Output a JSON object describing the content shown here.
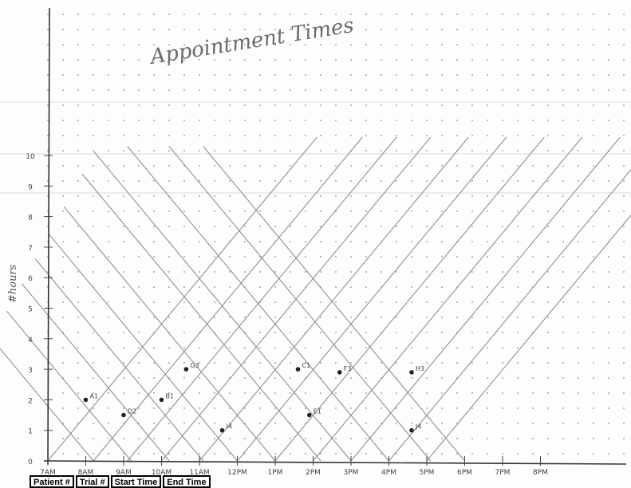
{
  "chart_data": {
    "type": "scatter",
    "title": "Appointment Times",
    "ylabel": "#hours",
    "xlabel": "",
    "x_ticks": [
      "7AM",
      "8AM",
      "9AM",
      "10AM",
      "11AM",
      "12PM",
      "1PM",
      "2PM",
      "3PM",
      "4PM",
      "5PM",
      "6PM",
      "7PM",
      "8PM"
    ],
    "y_ticks": [
      "0",
      "1",
      "2",
      "3",
      "4",
      "5",
      "6",
      "7",
      "8",
      "9",
      "10"
    ],
    "xlim": [
      7,
      21.5
    ],
    "ylim": [
      0,
      10.5
    ],
    "grid": "dot grid",
    "points": [
      {
        "label": "A1",
        "x": 8.0,
        "y": 2
      },
      {
        "label": "D2",
        "x": 9.0,
        "y": 1.5
      },
      {
        "label": "B1",
        "x": 10.0,
        "y": 2
      },
      {
        "label": "G3",
        "x": 10.65,
        "y": 3
      },
      {
        "label": "I4",
        "x": 11.6,
        "y": 1
      },
      {
        "label": "C1",
        "x": 13.6,
        "y": 3
      },
      {
        "label": "E1",
        "x": 13.9,
        "y": 1.5
      },
      {
        "label": "F3",
        "x": 14.7,
        "y": 2.9
      },
      {
        "label": "H3",
        "x": 16.6,
        "y": 2.9
      },
      {
        "label": "J4",
        "x": 16.6,
        "y": 1
      }
    ],
    "rising_lines_start_x": [
      7,
      8.2,
      9.1,
      10.0,
      11.0,
      12.0,
      13.0,
      14.0,
      15.0,
      16.0,
      17.0
    ],
    "falling_lines_start_x": [
      8.2,
      9.2,
      10.2,
      11.1,
      12.0,
      13.0,
      14.2,
      15.0,
      16.0,
      17.1,
      18.0
    ]
  },
  "table": {
    "headers": [
      "Patient #",
      "Trial #",
      "Start Time",
      "End Time"
    ]
  }
}
